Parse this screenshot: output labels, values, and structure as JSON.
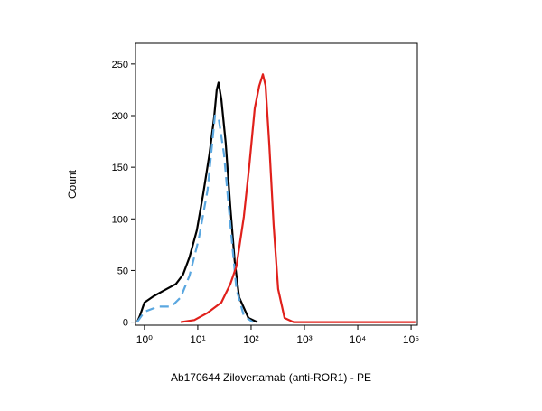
{
  "chart_data": {
    "type": "line",
    "x_label": "Ab170644 Zilovertamab (anti-ROR1) - PE",
    "y_label": "Count",
    "x_log": true,
    "xlim": [
      0.68,
      131000
    ],
    "ylim": [
      -3,
      270
    ],
    "xticks": [
      {
        "value": 1,
        "label": "10⁰"
      },
      {
        "value": 10,
        "label": "10¹"
      },
      {
        "value": 100,
        "label": "10²"
      },
      {
        "value": 1000,
        "label": "10³"
      },
      {
        "value": 10000,
        "label": "10⁴"
      },
      {
        "value": 100000,
        "label": "10⁵"
      }
    ],
    "yticks": [
      0,
      50,
      100,
      150,
      200,
      250
    ],
    "series": [
      {
        "color": "#000000",
        "dashed": false,
        "x": [
          0.73,
          0.82,
          1.0,
          1.48,
          2.2,
          3.9,
          5.3,
          7.0,
          9.6,
          12.6,
          16.6,
          20.2,
          22.7,
          24.5,
          27.6,
          33.5,
          40.8,
          49.3,
          59.6,
          89.1,
          131
        ],
        "values": [
          0,
          6,
          19,
          25,
          30,
          37,
          46,
          63,
          89,
          124,
          163,
          198,
          225,
          232,
          216,
          173,
          111,
          59,
          24,
          4,
          0
        ]
      },
      {
        "color": "#5aa7e0",
        "dashed": true,
        "x": [
          0.73,
          1.0,
          1.8,
          3.2,
          4.8,
          7.0,
          10.4,
          15.3,
          21,
          24.5,
          31,
          40.8,
          53,
          73,
          108
        ],
        "values": [
          0,
          10,
          15,
          15,
          24,
          45,
          80,
          128,
          200,
          198,
          163,
          94,
          32,
          6,
          0
        ]
      },
      {
        "color": "#e0201b",
        "dashed": false,
        "x": [
          4.8,
          8.6,
          15.3,
          27.6,
          40.8,
          53,
          73,
          92,
          117,
          142,
          166,
          187,
          219,
          264,
          322,
          424,
          626,
          120000
        ],
        "values": [
          0,
          2,
          9,
          19,
          37,
          54,
          102,
          150,
          207,
          229,
          240,
          229,
          172,
          94,
          32,
          4,
          0,
          0
        ]
      }
    ]
  }
}
